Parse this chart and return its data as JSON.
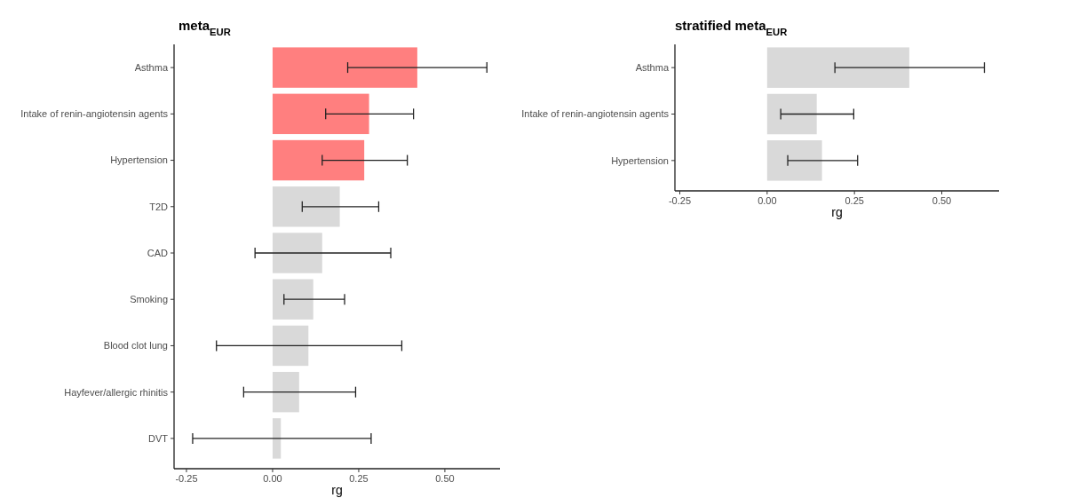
{
  "chart_data": [
    {
      "type": "bar",
      "orientation": "horizontal",
      "title": "meta$_{EUR}$",
      "xlabel": "rg",
      "categories": [
        "Asthma",
        "Intake of renin-angiotensin agents",
        "Hypertension",
        "T2D",
        "CAD",
        "Smoking",
        "Blood clot lung",
        "Hayfever/allergic rhinitis",
        "DVT"
      ],
      "values": [
        0.42,
        0.28,
        0.266,
        0.195,
        0.144,
        0.118,
        0.104,
        0.077,
        0.024
      ],
      "colors": [
        "#ff7f7f",
        "#ff7f7f",
        "#ff7f7f",
        "#d9d9d9",
        "#d9d9d9",
        "#d9d9d9",
        "#d9d9d9",
        "#d9d9d9",
        "#d9d9d9"
      ],
      "errors": [
        [
          0.218,
          0.622
        ],
        [
          0.154,
          0.409
        ],
        [
          0.144,
          0.391
        ],
        [
          0.086,
          0.308
        ],
        [
          -0.051,
          0.343
        ],
        [
          0.033,
          0.209
        ],
        [
          -0.163,
          0.375
        ],
        [
          -0.084,
          0.241
        ],
        [
          -0.232,
          0.286
        ]
      ],
      "xlim": [
        -0.286,
        0.66
      ],
      "xticks": [
        {
          "value": -0.25,
          "label": "-0.25"
        },
        {
          "value": 0,
          "label": "0.00"
        },
        {
          "value": 0.25,
          "label": "0.25"
        },
        {
          "value": 0.5,
          "label": "0.50"
        }
      ],
      "grid": false
    },
    {
      "type": "bar",
      "orientation": "horizontal",
      "title": "stratified meta$_{EUR}$",
      "xlabel": "rg",
      "categories": [
        "Asthma",
        "Intake of renin-angiotensin agents",
        "Hypertension"
      ],
      "values": [
        0.407,
        0.142,
        0.157
      ],
      "colors": [
        "#d9d9d9",
        "#d9d9d9",
        "#d9d9d9"
      ],
      "errors": [
        [
          0.194,
          0.622
        ],
        [
          0.039,
          0.248
        ],
        [
          0.059,
          0.259
        ]
      ],
      "xlim": [
        -0.264,
        0.664
      ],
      "xticks": [
        {
          "value": -0.25,
          "label": "-0.25"
        },
        {
          "value": 0,
          "label": "0.00"
        },
        {
          "value": 0.25,
          "label": "0.25"
        },
        {
          "value": 0.5,
          "label": "0.50"
        }
      ],
      "grid": false
    }
  ]
}
